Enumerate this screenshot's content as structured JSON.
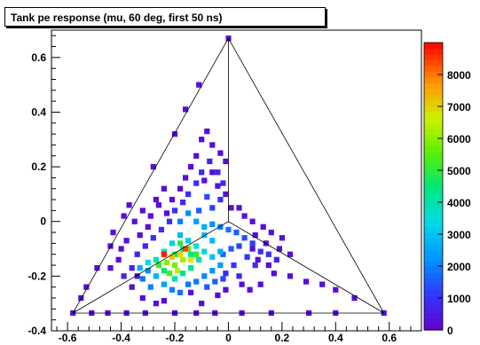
{
  "title": "Tank pe response (mu, 60 deg, first 50 ns)",
  "chart_data": {
    "type": "heatmap",
    "title": "Tank pe response (mu, 60 deg, first 50 ns)",
    "xlabel": "",
    "ylabel": "",
    "xlim": [
      -0.66,
      0.72
    ],
    "ylim": [
      -0.4,
      0.7
    ],
    "xticks": [
      -0.6,
      -0.4,
      -0.2,
      0,
      0.2,
      0.4,
      0.6
    ],
    "xtick_labels": [
      "-0.6",
      "-0.4",
      "-0.2",
      "0",
      "0.2",
      "0.4",
      "0.6"
    ],
    "yticks": [
      -0.4,
      -0.2,
      0,
      0.2,
      0.4,
      0.6
    ],
    "ytick_labels": [
      "-0.4",
      "-0.2",
      "0",
      "0.2",
      "0.4",
      "0.6"
    ],
    "colorbar": {
      "min": 0,
      "max": 9000,
      "ticks": [
        0,
        1000,
        2000,
        3000,
        4000,
        5000,
        6000,
        7000,
        8000
      ],
      "tick_labels": [
        "0",
        "1000",
        "2000",
        "3000",
        "4000",
        "5000",
        "6000",
        "7000",
        "8000"
      ]
    },
    "outline": {
      "triangle": [
        [
          -0.58,
          -0.335
        ],
        [
          0.58,
          -0.335
        ],
        [
          0.0,
          0.67
        ]
      ],
      "center": [
        0.0,
        0.0
      ]
    },
    "bin_size": 0.0204,
    "cells": [
      [
        -0.58,
        -0.335,
        400
      ],
      [
        0.58,
        -0.335,
        400
      ],
      [
        0.0,
        0.67,
        400
      ],
      [
        -0.51,
        -0.335,
        300
      ],
      [
        -0.45,
        -0.335,
        300
      ],
      [
        -0.38,
        -0.335,
        300
      ],
      [
        -0.31,
        -0.335,
        300
      ],
      [
        -0.2,
        -0.335,
        300
      ],
      [
        -0.12,
        -0.335,
        300
      ],
      [
        -0.05,
        -0.335,
        300
      ],
      [
        0.05,
        -0.335,
        300
      ],
      [
        0.16,
        -0.335,
        300
      ],
      [
        0.3,
        -0.335,
        300
      ],
      [
        0.4,
        -0.335,
        300
      ],
      [
        -0.55,
        -0.28,
        300
      ],
      [
        -0.53,
        -0.24,
        300
      ],
      [
        -0.49,
        -0.17,
        300
      ],
      [
        -0.44,
        -0.09,
        300
      ],
      [
        -0.43,
        -0.04,
        300
      ],
      [
        -0.39,
        0.02,
        300
      ],
      [
        -0.37,
        0.06,
        300
      ],
      [
        -0.28,
        0.2,
        300
      ],
      [
        -0.2,
        0.32,
        300
      ],
      [
        -0.16,
        0.41,
        300
      ],
      [
        -0.11,
        0.5,
        300
      ],
      [
        0.23,
        -0.2,
        300
      ],
      [
        0.29,
        -0.22,
        300
      ],
      [
        0.35,
        -0.23,
        300
      ],
      [
        0.4,
        -0.25,
        300
      ],
      [
        0.47,
        -0.28,
        300
      ],
      [
        -0.34,
        -0.2,
        300
      ],
      [
        -0.36,
        -0.24,
        300
      ],
      [
        -0.32,
        -0.28,
        300
      ],
      [
        -0.24,
        -0.29,
        300
      ],
      [
        -0.27,
        -0.3,
        300
      ],
      [
        -0.1,
        -0.3,
        300
      ],
      [
        -0.14,
        -0.26,
        300
      ],
      [
        -0.04,
        -0.27,
        300
      ],
      [
        -0.01,
        -0.25,
        300
      ],
      [
        0.05,
        -0.23,
        300
      ],
      [
        0.08,
        -0.25,
        300
      ],
      [
        0.12,
        -0.23,
        300
      ],
      [
        0.17,
        -0.19,
        300
      ],
      [
        0.15,
        -0.16,
        300
      ],
      [
        0.11,
        -0.14,
        300
      ],
      [
        0.09,
        -0.1,
        300
      ],
      [
        0.14,
        -0.08,
        300
      ],
      [
        0.19,
        -0.1,
        300
      ],
      [
        0.23,
        -0.12,
        300
      ],
      [
        0.2,
        -0.06,
        300
      ],
      [
        0.16,
        -0.04,
        300
      ],
      [
        0.1,
        -0.05,
        300
      ],
      [
        0.13,
        -0.02,
        300
      ],
      [
        0.09,
        0.0,
        300
      ],
      [
        0.06,
        0.02,
        300
      ],
      [
        0.04,
        0.05,
        300
      ],
      [
        0.01,
        0.05,
        300
      ],
      [
        -0.44,
        -0.17,
        300
      ],
      [
        -0.41,
        -0.14,
        300
      ],
      [
        -0.4,
        -0.1,
        300
      ],
      [
        -0.38,
        -0.07,
        300
      ],
      [
        -0.33,
        -0.05,
        300
      ],
      [
        -0.3,
        -0.02,
        300
      ],
      [
        -0.29,
        0.02,
        300
      ],
      [
        -0.26,
        0.06,
        300
      ],
      [
        -0.23,
        0.03,
        300
      ],
      [
        -0.21,
        0.08,
        300
      ],
      [
        -0.18,
        0.12,
        300
      ],
      [
        -0.16,
        0.16,
        300
      ],
      [
        -0.14,
        0.2,
        300
      ],
      [
        -0.12,
        0.24,
        300
      ],
      [
        -0.1,
        0.3,
        300
      ],
      [
        -0.08,
        0.33,
        300
      ],
      [
        -0.06,
        0.28,
        300
      ],
      [
        -0.03,
        0.25,
        300
      ],
      [
        -0.01,
        0.22,
        300
      ],
      [
        -0.06,
        0.18,
        300
      ],
      [
        -0.09,
        0.15,
        300
      ],
      [
        -0.04,
        0.13,
        300
      ],
      [
        -0.01,
        0.1,
        300
      ],
      [
        -0.24,
        0.12,
        300
      ],
      [
        -0.27,
        0.08,
        300
      ],
      [
        -0.32,
        0.04,
        300
      ],
      [
        -0.35,
        0.0,
        300
      ],
      [
        -0.39,
        -0.2,
        800
      ],
      [
        -0.36,
        -0.17,
        800
      ],
      [
        -0.34,
        -0.12,
        700
      ],
      [
        -0.31,
        -0.09,
        800
      ],
      [
        -0.28,
        -0.06,
        900
      ],
      [
        -0.25,
        -0.03,
        900
      ],
      [
        -0.22,
        0.0,
        900
      ],
      [
        -0.2,
        0.04,
        1000
      ],
      [
        -0.17,
        0.07,
        900
      ],
      [
        -0.15,
        0.1,
        1000
      ],
      [
        -0.12,
        0.14,
        1000
      ],
      [
        -0.1,
        0.18,
        900
      ],
      [
        -0.07,
        0.22,
        700
      ],
      [
        -0.04,
        0.18,
        800
      ],
      [
        -0.02,
        0.14,
        900
      ],
      [
        -0.03,
        0.08,
        1000
      ],
      [
        -0.06,
        0.05,
        1200
      ],
      [
        -0.08,
        0.09,
        1300
      ],
      [
        -0.11,
        0.04,
        1500
      ],
      [
        -0.18,
        0.0,
        2000
      ],
      [
        -0.15,
        0.03,
        2200
      ],
      [
        -0.12,
        0.0,
        2400
      ],
      [
        -0.09,
        -0.02,
        2600
      ],
      [
        -0.06,
        -0.01,
        2200
      ],
      [
        -0.03,
        -0.02,
        2000
      ],
      [
        0.0,
        -0.03,
        1800
      ],
      [
        0.03,
        -0.04,
        1600
      ],
      [
        0.06,
        -0.06,
        1400
      ],
      [
        0.09,
        -0.08,
        1200
      ],
      [
        0.12,
        -0.11,
        1000
      ],
      [
        0.15,
        -0.12,
        900
      ],
      [
        0.18,
        -0.14,
        800
      ],
      [
        0.04,
        -0.09,
        1300
      ],
      [
        0.01,
        -0.1,
        1500
      ],
      [
        -0.02,
        -0.12,
        1700
      ],
      [
        0.07,
        -0.13,
        1100
      ],
      [
        0.1,
        -0.16,
        900
      ],
      [
        0.02,
        -0.16,
        1100
      ],
      [
        -0.01,
        -0.19,
        900
      ],
      [
        0.04,
        -0.2,
        800
      ],
      [
        -0.29,
        -0.24,
        2000
      ],
      [
        -0.32,
        -0.21,
        1800
      ],
      [
        -0.3,
        -0.18,
        2200
      ],
      [
        -0.27,
        -0.2,
        2800
      ],
      [
        -0.24,
        -0.23,
        2500
      ],
      [
        -0.21,
        -0.25,
        2000
      ],
      [
        -0.18,
        -0.26,
        1800
      ],
      [
        -0.15,
        -0.23,
        1900
      ],
      [
        -0.12,
        -0.22,
        1900
      ],
      [
        -0.09,
        -0.2,
        2100
      ],
      [
        -0.06,
        -0.18,
        2300
      ],
      [
        -0.03,
        -0.16,
        2400
      ],
      [
        -0.08,
        -0.24,
        1500
      ],
      [
        -0.05,
        -0.22,
        1600
      ],
      [
        -0.02,
        -0.21,
        1300
      ],
      [
        -0.27,
        -0.14,
        3800
      ],
      [
        -0.24,
        -0.11,
        3600
      ],
      [
        -0.21,
        -0.08,
        3200
      ],
      [
        -0.18,
        -0.05,
        2800
      ],
      [
        -0.15,
        -0.07,
        3200
      ],
      [
        -0.12,
        -0.09,
        3600
      ],
      [
        -0.09,
        -0.11,
        3300
      ],
      [
        -0.06,
        -0.13,
        3000
      ],
      [
        -0.03,
        -0.11,
        2600
      ],
      [
        -0.06,
        -0.07,
        2800
      ],
      [
        -0.09,
        -0.05,
        2900
      ],
      [
        -0.3,
        -0.15,
        3400
      ],
      [
        -0.33,
        -0.17,
        2600
      ],
      [
        -0.24,
        -0.18,
        4500
      ],
      [
        -0.2,
        -0.21,
        3900
      ],
      [
        -0.17,
        -0.19,
        4200
      ],
      [
        -0.14,
        -0.17,
        4100
      ],
      [
        -0.11,
        -0.14,
        3900
      ],
      [
        -0.14,
        -0.12,
        4300
      ],
      [
        -0.17,
        -0.1,
        4400
      ],
      [
        -0.2,
        -0.12,
        4600
      ],
      [
        -0.26,
        -0.16,
        5200
      ],
      [
        -0.23,
        -0.15,
        6000
      ],
      [
        -0.2,
        -0.16,
        5800
      ],
      [
        -0.17,
        -0.14,
        6200
      ],
      [
        -0.15,
        -0.1,
        5500
      ],
      [
        -0.18,
        -0.08,
        5000
      ],
      [
        -0.12,
        -0.12,
        5100
      ],
      [
        -0.22,
        -0.19,
        5400
      ],
      [
        -0.19,
        -0.18,
        6400
      ],
      [
        -0.24,
        -0.12,
        8800
      ],
      [
        -0.16,
        -0.1,
        8400
      ],
      [
        -0.21,
        -0.13,
        7200
      ],
      [
        -0.18,
        -0.12,
        6900
      ],
      [
        -0.14,
        -0.14,
        6600
      ]
    ]
  }
}
